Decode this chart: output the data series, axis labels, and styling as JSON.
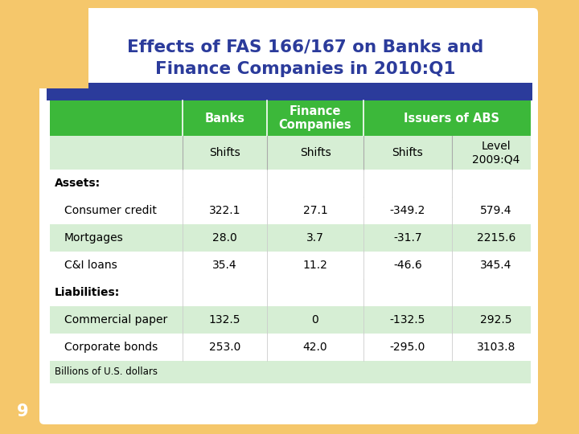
{
  "title_line1": "Effects of FAS 166/167 on Banks and",
  "title_line2": "Finance Companies in 2010:Q1",
  "title_color": "#2B3B9B",
  "bg_color": "#F5C76B",
  "slide_bg": "#FFFFFF",
  "blue_bar_color": "#2B3B9B",
  "green_header_color": "#3CB83A",
  "light_green_row": "#D6EED4",
  "white_row": "#FFFFFF",
  "page_number": "9",
  "rows": [
    {
      "label": "Assets:",
      "type": "section",
      "values": [
        "",
        "",
        "",
        ""
      ]
    },
    {
      "label": "Consumer credit",
      "type": "data",
      "values": [
        "322.1",
        "27.1",
        "-349.2",
        "579.4"
      ]
    },
    {
      "label": "Mortgages",
      "type": "data",
      "values": [
        "28.0",
        "3.7",
        "-31.7",
        "2215.6"
      ]
    },
    {
      "label": "C&I loans",
      "type": "data",
      "values": [
        "35.4",
        "11.2",
        "-46.6",
        "345.4"
      ]
    },
    {
      "label": "Liabilities:",
      "type": "section",
      "values": [
        "",
        "",
        "",
        ""
      ]
    },
    {
      "label": "Commercial paper",
      "type": "data",
      "values": [
        "132.5",
        "0",
        "-132.5",
        "292.5"
      ]
    },
    {
      "label": "Corporate bonds",
      "type": "data",
      "values": [
        "253.0",
        "42.0",
        "-295.0",
        "3103.8"
      ]
    }
  ],
  "footer": "Billions of U.S. dollars"
}
